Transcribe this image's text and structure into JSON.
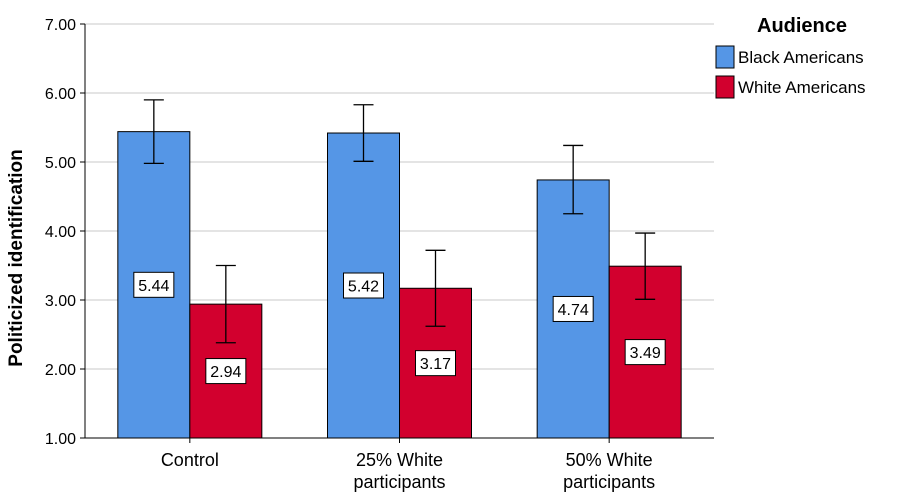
{
  "chart_data": {
    "type": "bar",
    "title": "",
    "xlabel": "",
    "ylabel": "Politicized identification",
    "ylim": [
      1,
      7
    ],
    "yticks": [
      "1.00",
      "2.00",
      "3.00",
      "4.00",
      "5.00",
      "6.00",
      "7.00"
    ],
    "categories": [
      [
        "Control"
      ],
      [
        "25% White",
        "participants"
      ],
      [
        "50% White",
        "participants"
      ]
    ],
    "legend": {
      "title": "Audience",
      "position": "top-right"
    },
    "grid": true,
    "series": [
      {
        "name": "Black Americans",
        "color": "#5596e6",
        "values": [
          5.44,
          5.42,
          4.74
        ],
        "labels": [
          "5.44",
          "5.42",
          "4.74"
        ],
        "error_low": [
          4.98,
          5.01,
          4.25
        ],
        "error_high": [
          5.9,
          5.83,
          5.24
        ]
      },
      {
        "name": "White Americans",
        "color": "#d2002e",
        "values": [
          2.94,
          3.17,
          3.49
        ],
        "labels": [
          "2.94",
          "3.17",
          "3.49"
        ],
        "error_low": [
          2.38,
          2.62,
          3.01
        ],
        "error_high": [
          3.5,
          3.72,
          3.97
        ]
      }
    ]
  }
}
